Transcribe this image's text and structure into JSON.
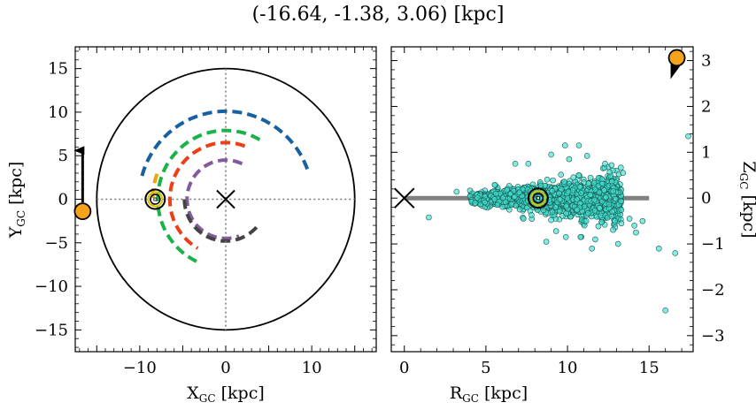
{
  "title": "(-16.64, -1.38, 3.06) [kpc]",
  "chart_data": [
    {
      "type": "scatter",
      "panel": "left",
      "xlabel_base": "X",
      "xlabel_sub": "GC",
      "xlabel_unit": " [kpc]",
      "ylabel_base": "Y",
      "ylabel_sub": "GC",
      "ylabel_unit": " [kpc]",
      "xlim": [
        -17.5,
        17.5
      ],
      "ylim": [
        -17.5,
        17.5
      ],
      "xticks": [
        -10,
        0,
        10
      ],
      "yticks": [
        -15,
        -10,
        -5,
        0,
        5,
        10,
        15
      ],
      "xticklabels": [
        "−10",
        "0",
        "10"
      ],
      "yticklabels": [
        "−15",
        "−10",
        "−5",
        "0",
        "5",
        "10",
        "15"
      ],
      "grid": false,
      "boundary_circle_radius": 15,
      "crosshair": true,
      "galactic_center": [
        0,
        0
      ],
      "sun": [
        -8.2,
        0
      ],
      "source": {
        "x": -16.64,
        "y": -1.38,
        "color": "#f5a31a"
      },
      "arms": [
        {
          "color": "#1761a0",
          "radius": 10.1,
          "start_deg": 20,
          "end_deg": 165
        },
        {
          "color": "#1bb24a",
          "radius": 7.9,
          "start_deg": 60,
          "end_deg": 245
        },
        {
          "color": "#f0a30a",
          "radius": 8.5,
          "start_deg": 160,
          "end_deg": 185
        },
        {
          "color": "#ef3e16",
          "radius": 6.5,
          "start_deg": 70,
          "end_deg": 240
        },
        {
          "color": "#825b9c",
          "radius": 4.5,
          "start_deg": 65,
          "end_deg": 290
        },
        {
          "color": "#444444",
          "radius": 4.8,
          "start_deg": 180,
          "end_deg": 320
        }
      ]
    },
    {
      "type": "scatter",
      "panel": "right",
      "xlabel_base": "R",
      "xlabel_sub": "GC",
      "xlabel_unit": " [kpc]",
      "ylabel_base": "Z",
      "ylabel_sub": "GC",
      "ylabel_unit": " [kpc]",
      "xlim": [
        -0.8,
        17.7
      ],
      "ylim": [
        -3.35,
        3.3
      ],
      "xticks": [
        0,
        5,
        10,
        15
      ],
      "yticks": [
        -3,
        -2,
        -1,
        0,
        1,
        2,
        3
      ],
      "xticklabels": [
        "0",
        "5",
        "10",
        "15"
      ],
      "yticklabels": [
        "−3",
        "−2",
        "−1",
        "0",
        "1",
        "2",
        "3"
      ],
      "grid": false,
      "disk_line": {
        "x": [
          0,
          15
        ],
        "y": 0,
        "color": "#808080"
      },
      "galactic_center": [
        0,
        0
      ],
      "sun": [
        8.2,
        0
      ],
      "source": {
        "r": 16.7,
        "z": 3.06,
        "color": "#f5a31a"
      },
      "point_color": "#40e0d0",
      "outliers": [
        [
          9.85,
          1.15
        ],
        [
          10.7,
          1.15
        ],
        [
          7.6,
          0.75
        ],
        [
          6.8,
          0.75
        ],
        [
          12.3,
          0.75
        ],
        [
          8.7,
          -0.95
        ],
        [
          9.9,
          -0.85
        ],
        [
          10.8,
          -0.85
        ],
        [
          11.7,
          -0.9
        ],
        [
          13.1,
          -1.0
        ],
        [
          14.1,
          -0.6
        ],
        [
          14.6,
          -0.5
        ],
        [
          15.6,
          -1.1
        ],
        [
          16.6,
          -1.2
        ],
        [
          16.0,
          -2.45
        ],
        [
          17.4,
          1.35
        ],
        [
          1.5,
          -0.42
        ],
        [
          3.2,
          0.14
        ],
        [
          13.4,
          0.55
        ],
        [
          14.2,
          -0.75
        ],
        [
          11.5,
          -1.1
        ],
        [
          12.7,
          -0.4
        ],
        [
          13.8,
          -0.45
        ],
        [
          9.3,
          -0.72
        ],
        [
          7.3,
          -0.45
        ],
        [
          10.1,
          0.85
        ],
        [
          11.2,
          0.92
        ],
        [
          12.8,
          0.15
        ],
        [
          9.0,
          0.95
        ],
        [
          13.3,
          -0.55
        ]
      ]
    }
  ]
}
